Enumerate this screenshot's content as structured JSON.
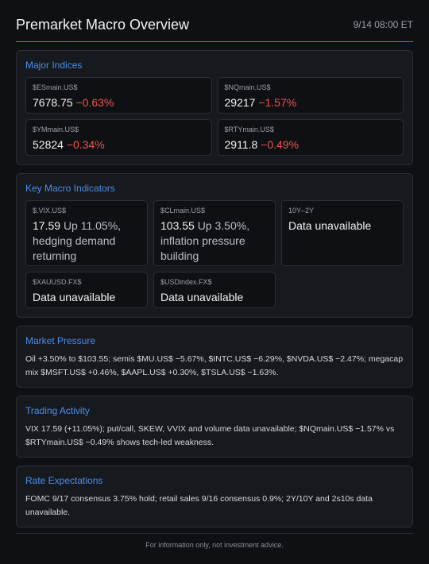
{
  "header": {
    "title": "Premarket Macro Overview",
    "timestamp": "9/14 08:00 ET"
  },
  "indices": {
    "title": "Major Indices",
    "tiles": [
      {
        "symbol": "$ESmain.US$",
        "price": "7678.75",
        "change": "−0.63%"
      },
      {
        "symbol": "$NQmain.US$",
        "price": "29217",
        "change": "−1.57%"
      },
      {
        "symbol": "$YMmain.US$",
        "price": "52824",
        "change": "−0.34%"
      },
      {
        "symbol": "$RTYmain.US$",
        "price": "2911.8",
        "change": "−0.49%"
      }
    ]
  },
  "macro": {
    "title": "Key Macro Indicators",
    "tiles": [
      {
        "symbol": "$.VIX.US$",
        "value": "17.59",
        "note": "Up 11.05%, hedging demand returning"
      },
      {
        "symbol": "$CLmain.US$",
        "value": "103.55",
        "note": "Up 3.50%, inflation pressure building"
      },
      {
        "symbol": "10Y–2Y",
        "value": "Data unavailable"
      },
      {
        "symbol": "$XAUUSD.FX$",
        "value": "Data unavailable"
      },
      {
        "symbol": "$USDindex.FX$",
        "value": "Data unavailable"
      }
    ]
  },
  "sections": [
    {
      "title": "Market Pressure",
      "text": "Oil +3.50% to $103.55; semis $MU.US$ −5.67%, $INTC.US$ −6.29%, $NVDA.US$ −2.47%; megacap mix $MSFT.US$ +0.46%, $AAPL.US$ +0.30%, $TSLA.US$ −1.63%."
    },
    {
      "title": "Trading Activity",
      "text": "VIX 17.59 (+11.05%); put/call, SKEW, VVIX and volume data unavailable; $NQmain.US$ −1.57% vs $RTYmain.US$ −0.49% shows tech-led weakness."
    },
    {
      "title": "Rate Expectations",
      "text": "FOMC 9/17 consensus 3.75% hold; retail sales 9/16 consensus 0.9%; 2Y/10Y and 2s10s data unavailable."
    }
  ],
  "footer": "For information only, not investment advice."
}
